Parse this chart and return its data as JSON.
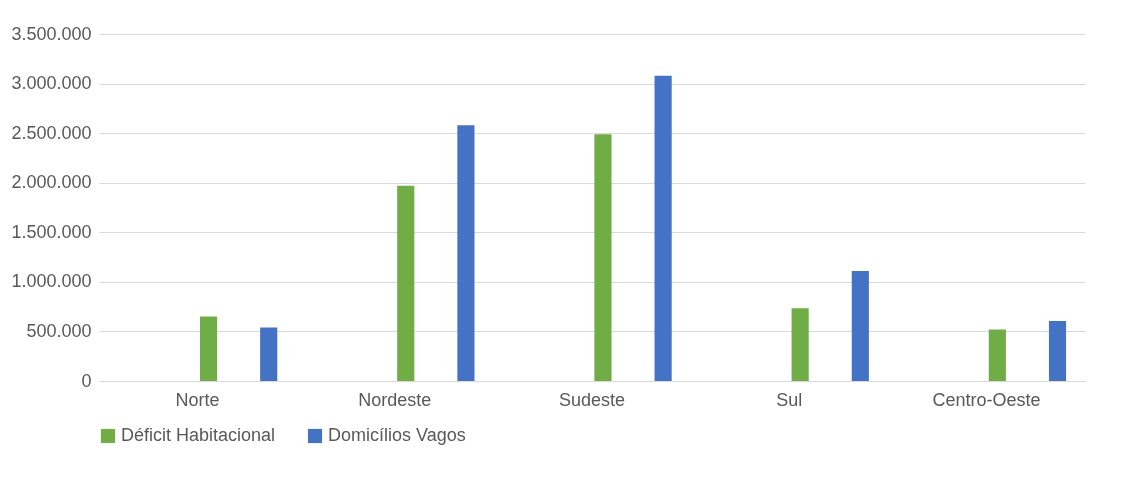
{
  "chart_data": {
    "type": "bar",
    "categories": [
      "Norte",
      "Nordeste",
      "Sudeste",
      "Sul",
      "Centro-Oeste"
    ],
    "series": [
      {
        "name": "Déficit Habitacional",
        "color": "#70ad47",
        "values": [
          650000,
          1970000,
          2490000,
          735000,
          520000
        ]
      },
      {
        "name": "Domicílios Vagos",
        "color": "#4472c4",
        "values": [
          540000,
          2580000,
          3080000,
          1110000,
          605000
        ]
      }
    ],
    "ylim": [
      0,
      3500000
    ],
    "yticks": [
      {
        "value": 0,
        "label": "0"
      },
      {
        "value": 500000,
        "label": "500.000"
      },
      {
        "value": 1000000,
        "label": "1.000.000"
      },
      {
        "value": 1500000,
        "label": "1.500.000"
      },
      {
        "value": 2000000,
        "label": "2.000.000"
      },
      {
        "value": 2500000,
        "label": "2.500.000"
      },
      {
        "value": 3000000,
        "label": "3.000.000"
      },
      {
        "value": 3500000,
        "label": "3.500.000"
      }
    ],
    "grid": "y",
    "legend": "bottom"
  }
}
